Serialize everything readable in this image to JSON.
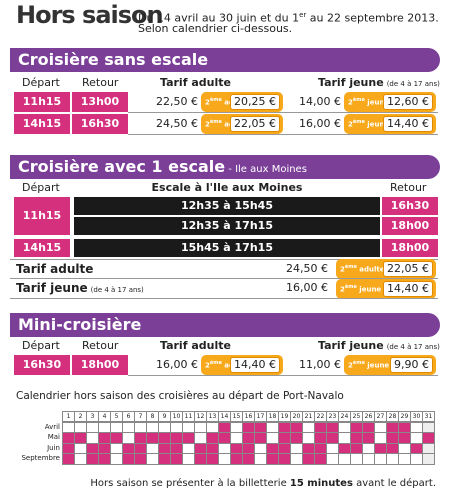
{
  "header": {
    "title": "Hors saison",
    "subtitle": {
      "before": "Du 14 avril au 30 juin et du 1",
      "sup": "er",
      "after": " au 22 septembre 2013."
    },
    "note": "Selon calendrier ci-dessous."
  },
  "section1": {
    "title": "Croisière sans escale",
    "headers": {
      "depart": "Départ",
      "retour": "Retour",
      "adult": "Tarif adulte",
      "young": "Tarif jeune",
      "young_note": "(de 4 à 17 ans)"
    },
    "rows": [
      {
        "depart": "11h15",
        "retour": "13h00",
        "adult": "22,50 €",
        "adult2": {
          "num": "2",
          "sup": "ème",
          "text": " adulte",
          "price": "20,25 €"
        },
        "young": "14,00 €",
        "young2": {
          "num": "2",
          "sup": "ème",
          "text": " jeune",
          "price": "12,60 €"
        }
      },
      {
        "depart": "14h15",
        "retour": "16h30",
        "adult": "24,50 €",
        "adult2": {
          "num": "2",
          "sup": "ème",
          "text": " adulte",
          "price": "22,05 €"
        },
        "young": "16,00 €",
        "young2": {
          "num": "2",
          "sup": "ème",
          "text": " jeune",
          "price": "14,40 €"
        }
      }
    ]
  },
  "section2": {
    "title": "Croisière avec 1 escale",
    "subtitle": " - Ile aux Moines",
    "headers": {
      "depart": "Départ",
      "stop": "Escale à l'Ile aux Moines",
      "retour": "Retour"
    },
    "departs": [
      "11h15",
      "14h15"
    ],
    "stops": [
      {
        "time": "12h35 à 15h45",
        "retour": "16h30"
      },
      {
        "time": "12h35 à 17h15",
        "retour": "18h00"
      },
      {
        "time": "15h45 à 17h15",
        "retour": "18h00"
      }
    ],
    "adult": {
      "label": "Tarif adulte",
      "price": "24,50 €",
      "second": {
        "num": "2",
        "sup": "ème",
        "text": " adulte",
        "price": "22,05 €"
      }
    },
    "young": {
      "label": "Tarif jeune",
      "note": "(de 4 à 17 ans)",
      "price": "16,00 €",
      "second": {
        "num": "2",
        "sup": "ème",
        "text": " jeune",
        "price": "14,40 €"
      }
    }
  },
  "section3": {
    "title": "Mini-croisière",
    "headers": {
      "depart": "Départ",
      "retour": "Retour",
      "adult": "Tarif adulte",
      "young": "Tarif jeune",
      "young_note": "(de 4 à 17 ans)"
    },
    "rows": [
      {
        "depart": "16h30",
        "retour": "18h00",
        "adult": "16,00 €",
        "adult2": {
          "num": "2",
          "sup": "ème",
          "text": " adulte",
          "price": "14,40 €"
        },
        "young": "11,00 €",
        "young2": {
          "num": "2",
          "sup": "ème",
          "text": " jeune",
          "price": "9,90 €"
        }
      }
    ]
  },
  "calendar": {
    "title": "Calendrier hors saison des croisières au départ de Port-Navalo",
    "days": [
      "1",
      "2",
      "3",
      "4",
      "5",
      "6",
      "7",
      "8",
      "9",
      "10",
      "11",
      "12",
      "13",
      "14",
      "15",
      "16",
      "17",
      "18",
      "19",
      "20",
      "21",
      "22",
      "23",
      "24",
      "25",
      "26",
      "27",
      "28",
      "29",
      "30",
      "31"
    ],
    "active_color": "#d5307e",
    "months": [
      {
        "name": "Avril",
        "active": [
          false,
          false,
          false,
          false,
          false,
          false,
          false,
          false,
          false,
          false,
          false,
          false,
          false,
          true,
          false,
          true,
          true,
          false,
          true,
          true,
          false,
          true,
          true,
          false,
          true,
          true,
          false,
          true,
          true,
          false,
          null
        ]
      },
      {
        "name": "Mai",
        "active": [
          true,
          true,
          false,
          true,
          true,
          false,
          true,
          true,
          true,
          true,
          true,
          false,
          true,
          true,
          false,
          true,
          true,
          false,
          true,
          true,
          false,
          true,
          true,
          false,
          true,
          true,
          false,
          true,
          true,
          false,
          true
        ]
      },
      {
        "name": "Juin",
        "active": [
          true,
          false,
          true,
          true,
          false,
          true,
          true,
          false,
          true,
          true,
          false,
          true,
          true,
          false,
          true,
          true,
          false,
          true,
          true,
          false,
          true,
          true,
          false,
          true,
          true,
          false,
          true,
          true,
          false,
          true,
          null
        ]
      },
      {
        "name": "Septembre",
        "active": [
          true,
          false,
          true,
          true,
          false,
          true,
          true,
          false,
          true,
          true,
          false,
          true,
          true,
          false,
          true,
          true,
          false,
          true,
          true,
          false,
          true,
          true,
          false,
          false,
          false,
          false,
          false,
          false,
          false,
          false,
          null
        ]
      }
    ]
  },
  "footer": {
    "before": "Hors saison se présenter à la billetterie ",
    "bold": "15 minutes",
    "after": " avant le départ."
  }
}
